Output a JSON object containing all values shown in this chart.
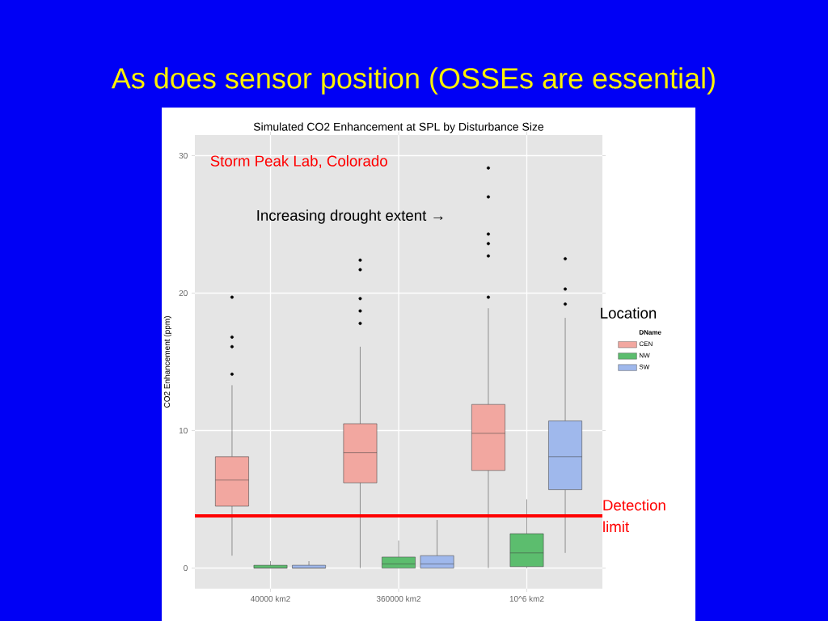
{
  "chart_data": {
    "type": "box",
    "title": "As does sensor position (OSSEs are essential)",
    "subtitle": "Simulated CO2 Enhancement at SPL by Disturbance Size",
    "ylabel": "CO2 Enhancement (ppm)",
    "legend_title": "DName",
    "categories": [
      "40000 km2",
      "360000 km2",
      "10^6 km2"
    ],
    "series": [
      {
        "name": "CEN",
        "color": "#f2a7a0",
        "boxes": [
          {
            "low": 0.9,
            "q1": 4.5,
            "median": 6.4,
            "q3": 8.1,
            "high": 13.3,
            "outliers": [
              14.1,
              16.1,
              16.8,
              19.7
            ]
          },
          {
            "low": 0,
            "q1": 6.2,
            "median": 8.4,
            "q3": 10.5,
            "high": 16.1,
            "outliers": [
              17.8,
              18.7,
              19.6,
              21.7,
              22.4
            ]
          },
          {
            "low": 0,
            "q1": 7.1,
            "median": 9.8,
            "q3": 11.9,
            "high": 18.9,
            "outliers": [
              19.7,
              22.7,
              23.6,
              24.3,
              27.0,
              29.1
            ]
          }
        ]
      },
      {
        "name": "NW",
        "color": "#5cbd6e",
        "boxes": [
          {
            "low": 0,
            "q1": 0,
            "median": 0,
            "q3": 0.2,
            "high": 0.5
          },
          {
            "low": 0,
            "q1": 0,
            "median": 0.3,
            "q3": 0.8,
            "high": 2.0
          },
          {
            "low": 0,
            "q1": 0.1,
            "median": 1.1,
            "q3": 2.5,
            "high": 5.0
          }
        ]
      },
      {
        "name": "SW",
        "color": "#9fb8ec",
        "boxes": [
          {
            "low": 0,
            "q1": 0,
            "median": 0,
            "q3": 0.2,
            "high": 0.5
          },
          {
            "low": 0,
            "q1": 0,
            "median": 0.3,
            "q3": 0.9,
            "high": 3.5
          },
          {
            "low": 1.1,
            "q1": 5.7,
            "median": 8.1,
            "q3": 10.7,
            "high": 18.2,
            "outliers": [
              19.2,
              20.3,
              22.5
            ]
          }
        ]
      }
    ],
    "ylim": [
      -1.5,
      31.5
    ],
    "yticks": [
      0,
      10,
      20,
      30
    ],
    "grid": true,
    "legend": "right",
    "ref_lines": [
      {
        "axis": "y",
        "value": 3.8,
        "label": "Detection limit",
        "color": "#ff0000"
      }
    ],
    "annotations": [
      "Storm Peak Lab, Colorado",
      "Increasing drought extent →",
      "Location"
    ]
  }
}
